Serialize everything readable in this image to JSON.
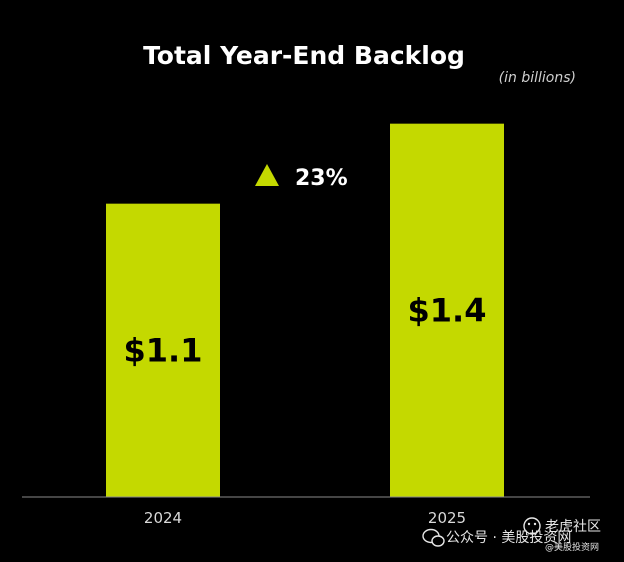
{
  "colors": {
    "background": "#000000",
    "bar": "#c4d900",
    "axis": "#8a8a8a",
    "title": "#ffffff"
  },
  "chart_data": {
    "type": "bar",
    "title": "Total Year-End Backlog",
    "subtitle": "(in billions)",
    "categories": [
      "2024",
      "2025"
    ],
    "values": [
      1.1,
      1.4
    ],
    "value_labels": [
      "$1.1",
      "$1.4"
    ],
    "ylim": [
      0,
      1.5
    ],
    "grid": false,
    "annotation": {
      "icon": "up-triangle-icon",
      "text": "23%"
    }
  },
  "watermark": {
    "text": "公众号 · 美股投资网",
    "brand": "老虎社区",
    "handle": "@美股投资网"
  }
}
